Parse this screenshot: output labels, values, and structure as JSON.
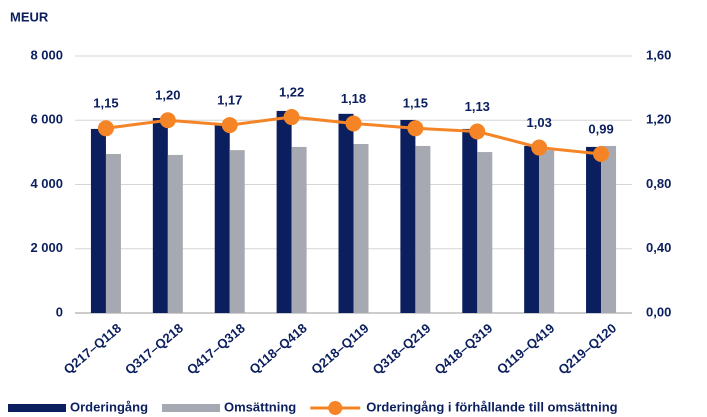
{
  "chart_data": {
    "type": "bar",
    "y_label": "MEUR",
    "categories": [
      "Q217–Q118",
      "Q317–Q218",
      "Q417–Q318",
      "Q118–Q418",
      "Q218–Q119",
      "Q318–Q219",
      "Q418–Q319",
      "Q119–Q419",
      "Q219–Q120"
    ],
    "series": [
      {
        "name": "Orderingång",
        "type": "bar",
        "color": "#0b1f5e",
        "values": [
          5730,
          6070,
          5910,
          6290,
          6200,
          6010,
          5730,
          5200,
          5170
        ]
      },
      {
        "name": "Omsättning",
        "type": "bar",
        "color": "#a6a9b1",
        "values": [
          4950,
          4920,
          5070,
          5170,
          5260,
          5200,
          5010,
          5070,
          5200
        ]
      },
      {
        "name": "Orderingång i förhållande till omsättning",
        "type": "line",
        "axis": "y2",
        "color": "#f58426",
        "values": [
          1.15,
          1.2,
          1.17,
          1.22,
          1.18,
          1.15,
          1.13,
          1.03,
          0.99
        ],
        "value_labels": [
          "1,15",
          "1,20",
          "1,17",
          "1,22",
          "1,18",
          "1,15",
          "1,13",
          "1,03",
          "0,99"
        ]
      }
    ],
    "ylim": [
      0,
      8000
    ],
    "yticks": [
      {
        "value": 0,
        "label": "0"
      },
      {
        "value": 2000,
        "label": "2 000"
      },
      {
        "value": 4000,
        "label": "4 000"
      },
      {
        "value": 6000,
        "label": "6 000"
      },
      {
        "value": 8000,
        "label": "8 000"
      }
    ],
    "y2lim": [
      0,
      1.6
    ],
    "y2ticks": [
      {
        "value": 0,
        "label": "0,00"
      },
      {
        "value": 0.4,
        "label": "0,40"
      },
      {
        "value": 0.8,
        "label": "0,80"
      },
      {
        "value": 1.2,
        "label": "1,20"
      },
      {
        "value": 1.6,
        "label": "1,60"
      }
    ],
    "grid": true
  }
}
